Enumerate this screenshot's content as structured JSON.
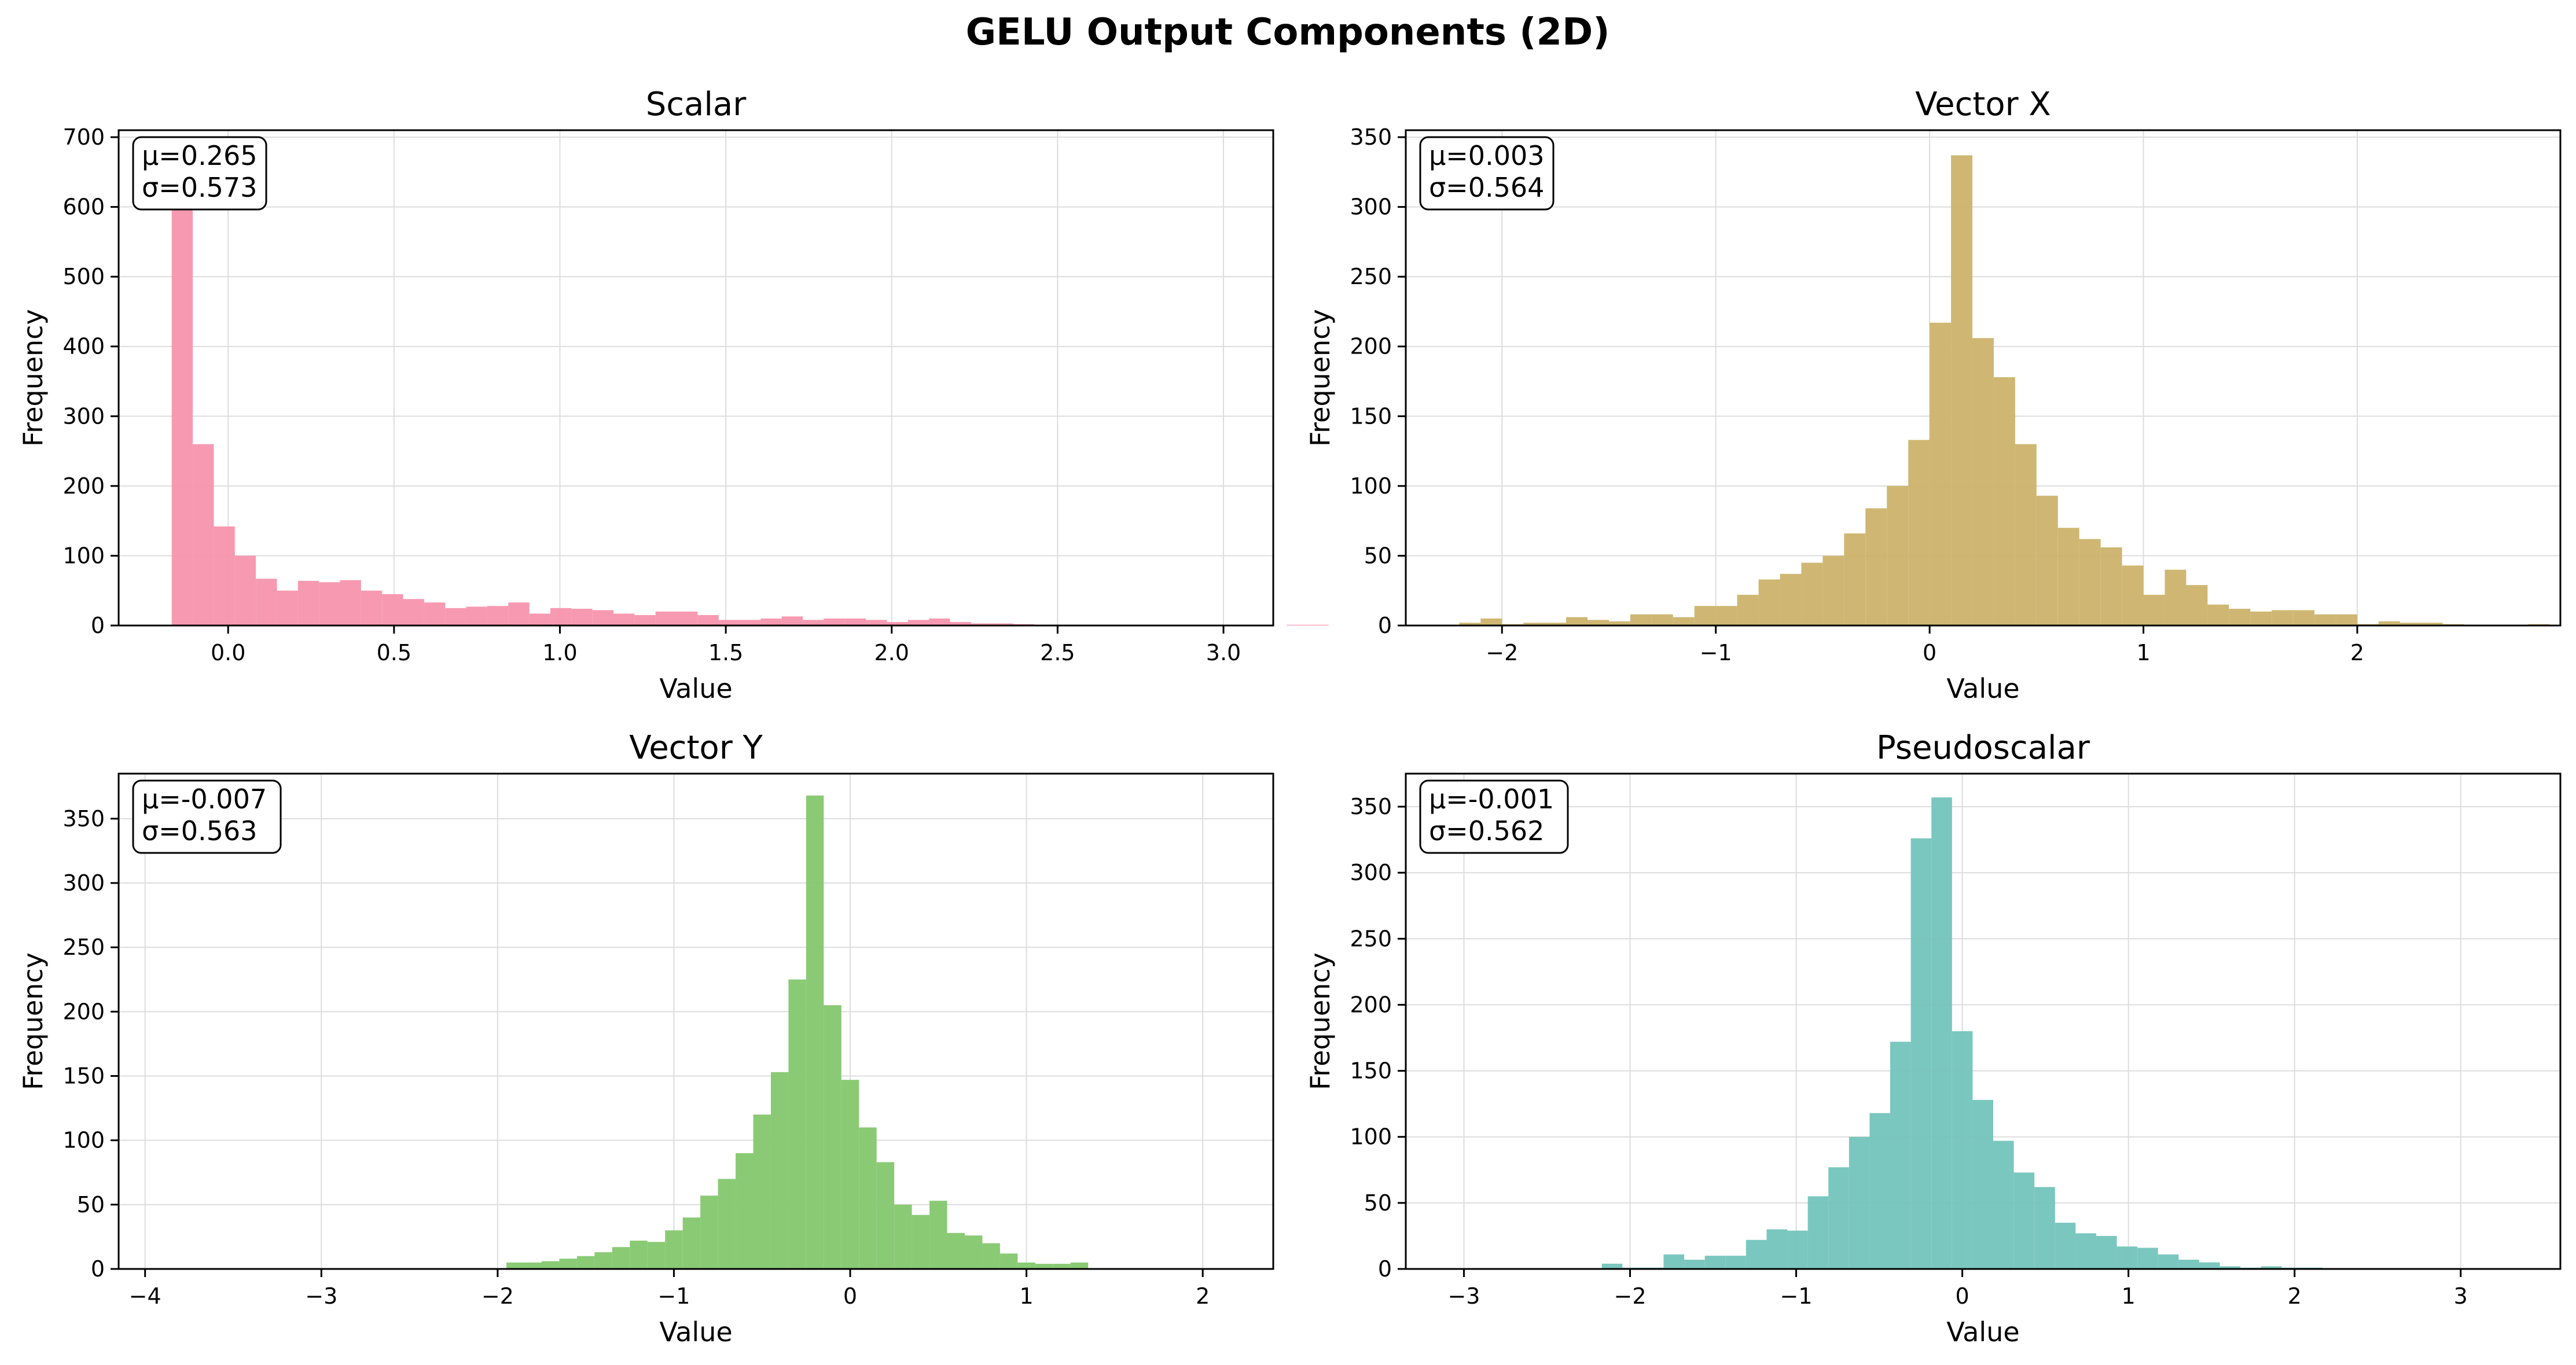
{
  "title": "GELU Output Components (2D)",
  "colors": {
    "scalar": "#f794ad",
    "vector_x": "#ccb36b",
    "vector_y": "#84c76e",
    "pseudoscalar": "#73c4bc",
    "grid": "#dddddd"
  },
  "chart_data": [
    {
      "type": "bar",
      "title": "Scalar",
      "xlabel": "Value",
      "ylabel": "Frequency",
      "xlim": [
        -0.33,
        3.15
      ],
      "ylim": [
        0,
        710
      ],
      "xticks": [
        0.0,
        0.5,
        1.0,
        1.5,
        2.0,
        2.5,
        3.0
      ],
      "xtick_labels": [
        "0.0",
        "0.5",
        "1.0",
        "1.5",
        "2.0",
        "2.5",
        "3.0"
      ],
      "yticks": [
        0,
        100,
        200,
        300,
        400,
        500,
        600,
        700
      ],
      "ytick_labels": [
        "0",
        "100",
        "200",
        "300",
        "400",
        "500",
        "600",
        "700"
      ],
      "grid": true,
      "bin_start": -0.17,
      "bin_width": 0.0634,
      "values": [
        675,
        260,
        142,
        100,
        67,
        50,
        64,
        62,
        65,
        50,
        45,
        38,
        33,
        25,
        27,
        28,
        33,
        17,
        25,
        24,
        22,
        17,
        15,
        20,
        20,
        15,
        8,
        8,
        10,
        13,
        8,
        10,
        10,
        8,
        5,
        8,
        10,
        5,
        3,
        3,
        2,
        1,
        1,
        1,
        1,
        0,
        0,
        0,
        0,
        0,
        0,
        0,
        0,
        1,
        1
      ],
      "stats": {
        "mean": "μ=0.265",
        "std": "σ=0.573"
      },
      "color_key": "scalar"
    },
    {
      "type": "bar",
      "title": "Vector X",
      "xlabel": "Value",
      "ylabel": "Frequency",
      "xlim": [
        -2.45,
        2.95
      ],
      "ylim": [
        0,
        355
      ],
      "xticks": [
        -2,
        -1,
        0,
        1,
        2
      ],
      "xtick_labels": [
        "−2",
        "−1",
        "0",
        "1",
        "2"
      ],
      "yticks": [
        0,
        50,
        100,
        150,
        200,
        250,
        300,
        350
      ],
      "ytick_labels": [
        "0",
        "50",
        "100",
        "150",
        "200",
        "250",
        "300",
        "350"
      ],
      "grid": true,
      "bin_start": -2.2,
      "bin_width": 0.1,
      "values": [
        2,
        5,
        1,
        2,
        2,
        6,
        4,
        3,
        8,
        8,
        6,
        14,
        14,
        22,
        33,
        37,
        45,
        50,
        66,
        84,
        100,
        133,
        217,
        337,
        206,
        178,
        130,
        93,
        70,
        62,
        56,
        43,
        22,
        40,
        29,
        15,
        12,
        10,
        11,
        11,
        8,
        8,
        1,
        3,
        2,
        2,
        1,
        0,
        0,
        0,
        1
      ],
      "stats": {
        "mean": "μ=0.003",
        "std": "σ=0.564"
      },
      "color_key": "vector_x"
    },
    {
      "type": "bar",
      "title": "Vector Y",
      "xlabel": "Value",
      "ylabel": "Frequency",
      "xlim": [
        -4.15,
        2.4
      ],
      "ylim": [
        0,
        385
      ],
      "xticks": [
        -4,
        -3,
        -2,
        -1,
        0,
        1,
        2
      ],
      "xtick_labels": [
        "−4",
        "−3",
        "−2",
        "−1",
        "0",
        "1",
        "2"
      ],
      "yticks": [
        0,
        50,
        100,
        150,
        200,
        250,
        300,
        350
      ],
      "ytick_labels": [
        "0",
        "50",
        "100",
        "150",
        "200",
        "250",
        "300",
        "350"
      ],
      "grid": true,
      "bin_start": -1.95,
      "bin_width": 0.1,
      "values": [
        5,
        5,
        6,
        8,
        10,
        13,
        17,
        22,
        21,
        30,
        40,
        57,
        70,
        90,
        120,
        153,
        225,
        368,
        205,
        147,
        110,
        83,
        50,
        42,
        53,
        28,
        26,
        20,
        12,
        5,
        4,
        4,
        5
      ],
      "stats": {
        "mean": "μ=-0.007",
        "std": "σ=0.563"
      },
      "color_key": "vector_y"
    },
    {
      "type": "bar",
      "title": "Pseudoscalar",
      "xlabel": "Value",
      "ylabel": "Frequency",
      "xlim": [
        -3.35,
        3.6
      ],
      "ylim": [
        0,
        375
      ],
      "xticks": [
        -3,
        -2,
        -1,
        0,
        1,
        2,
        3
      ],
      "xtick_labels": [
        "−3",
        "−2",
        "−1",
        "0",
        "1",
        "2",
        "3"
      ],
      "yticks": [
        0,
        50,
        100,
        150,
        200,
        250,
        300,
        350
      ],
      "ytick_labels": [
        "0",
        "50",
        "100",
        "150",
        "200",
        "250",
        "300",
        "350"
      ],
      "grid": true,
      "bin_start": -2.17,
      "bin_width": 0.124,
      "values": [
        4,
        1,
        1,
        11,
        7,
        10,
        10,
        22,
        30,
        29,
        55,
        77,
        100,
        118,
        172,
        326,
        357,
        180,
        128,
        97,
        73,
        62,
        35,
        27,
        25,
        17,
        16,
        11,
        7,
        5,
        2,
        1,
        2,
        1,
        1
      ],
      "stats": {
        "mean": "μ=-0.001",
        "std": "σ=0.562"
      },
      "color_key": "pseudoscalar"
    }
  ]
}
